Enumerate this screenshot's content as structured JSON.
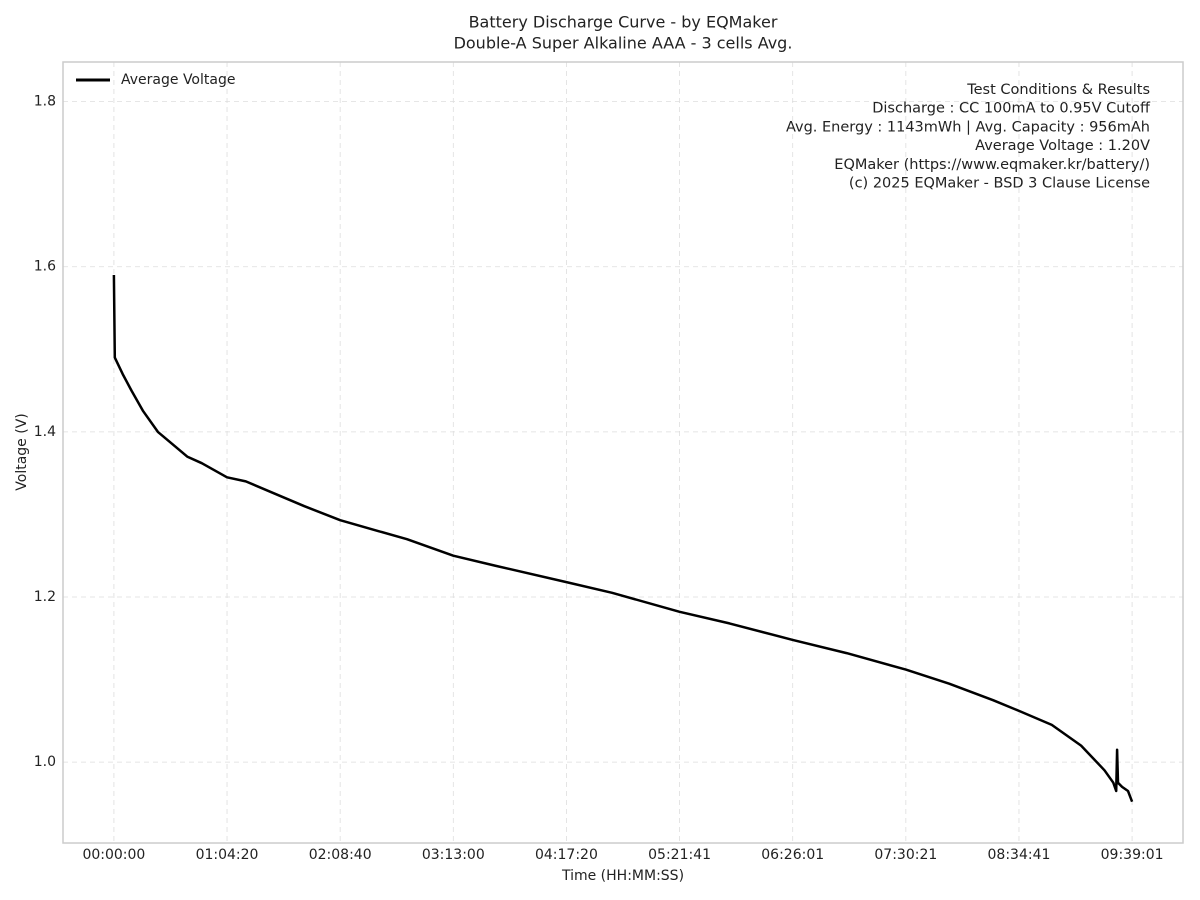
{
  "chart_data": {
    "type": "line",
    "title": "Battery Discharge Curve - by EQMaker",
    "subtitle": "Double-A Super Alkaline AAA - 3 cells Avg.",
    "x_label": "Time (HH:MM:SS)",
    "y_label": "Voltage (V)",
    "x": [
      0,
      30,
      300,
      600,
      1000,
      1500,
      2000,
      2500,
      3000,
      3860,
      4500,
      5500,
      6500,
      7720,
      9000,
      10000,
      11580,
      13000,
      15440,
      17000,
      19301,
      21000,
      23161,
      25000,
      27021,
      28500,
      30000,
      30881,
      32000,
      33000,
      33800,
      34100,
      34200,
      34230,
      34260,
      34400,
      34600,
      34741
    ],
    "series": [
      {
        "name": "Average Voltage",
        "color": "#000000",
        "values": [
          1.59,
          1.49,
          1.47,
          1.45,
          1.425,
          1.4,
          1.385,
          1.37,
          1.362,
          1.345,
          1.34,
          1.325,
          1.31,
          1.293,
          1.28,
          1.27,
          1.25,
          1.238,
          1.218,
          1.205,
          1.182,
          1.168,
          1.148,
          1.132,
          1.112,
          1.095,
          1.075,
          1.062,
          1.045,
          1.02,
          0.99,
          0.975,
          0.965,
          1.015,
          0.975,
          0.97,
          0.965,
          0.952
        ]
      }
    ],
    "xlim": [
      -1737,
      36478
    ],
    "ylim": [
      0.902,
      1.848
    ],
    "xticks": [
      {
        "value": 0,
        "label": "00:00:00"
      },
      {
        "value": 3860,
        "label": "01:04:20"
      },
      {
        "value": 7720,
        "label": "02:08:40"
      },
      {
        "value": 11580,
        "label": "03:13:00"
      },
      {
        "value": 15440,
        "label": "04:17:20"
      },
      {
        "value": 19301,
        "label": "05:21:41"
      },
      {
        "value": 23161,
        "label": "06:26:01"
      },
      {
        "value": 27021,
        "label": "07:30:21"
      },
      {
        "value": 30881,
        "label": "08:34:41"
      },
      {
        "value": 34741,
        "label": "09:39:01"
      }
    ],
    "yticks": [
      {
        "value": 1,
        "label": "1.0"
      },
      1.2,
      1.4,
      1.6,
      1.8
    ],
    "grid": true,
    "legend_position": "upper-left",
    "annotation": [
      "Test Conditions & Results",
      "Discharge : CC 100mA to 0.95V Cutoff",
      "Avg. Energy : 1143mWh | Avg. Capacity : 956mAh",
      "Average Voltage : 1.20V",
      "EQMaker (https://www.eqmaker.kr/battery/)",
      "(c) 2025 EQMaker - BSD 3 Clause License"
    ]
  }
}
